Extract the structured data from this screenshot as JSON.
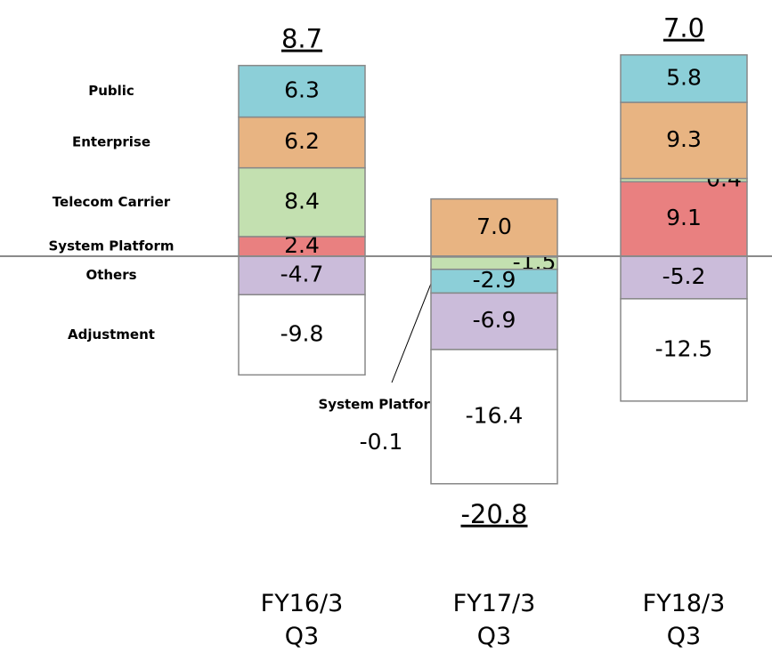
{
  "chart_data": {
    "type": "stacked-bar",
    "categories": [
      "FY16/3 Q3",
      "FY17/3 Q3",
      "FY18/3 Q3"
    ],
    "series": [
      {
        "name": "System Platform",
        "color": "#e98080",
        "values": [
          2.4,
          -0.1,
          9.1
        ]
      },
      {
        "name": "Telecom Carrier",
        "color": "#c3e0b0",
        "values": [
          8.4,
          -1.5,
          0.4
        ]
      },
      {
        "name": "Enterprise",
        "color": "#e8b482",
        "values": [
          6.2,
          7.0,
          9.3
        ]
      },
      {
        "name": "Public",
        "color": "#8ccfd8",
        "values": [
          6.3,
          -2.9,
          5.8
        ]
      },
      {
        "name": "Others",
        "color": "#cbbcda",
        "values": [
          -4.7,
          -6.9,
          -5.2
        ]
      },
      {
        "name": "Adjustment",
        "color": "#ffffff",
        "values": [
          -9.8,
          -16.4,
          -12.5
        ]
      }
    ],
    "totals": [
      8.7,
      -20.8,
      7.0
    ],
    "totals_labels": [
      "8.7",
      "-20.8",
      "7.0"
    ],
    "value_labels": [
      [
        "2.4",
        "-0.1",
        "9.1"
      ],
      [
        "8.4",
        "-1.5",
        "0.4"
      ],
      [
        "6.2",
        "7.0",
        "9.3"
      ],
      [
        "6.3",
        "-2.9",
        "5.8"
      ],
      [
        "-4.7",
        "-6.9",
        "-5.2"
      ],
      [
        "-9.8",
        "-16.4",
        "-12.5"
      ]
    ]
  }
}
